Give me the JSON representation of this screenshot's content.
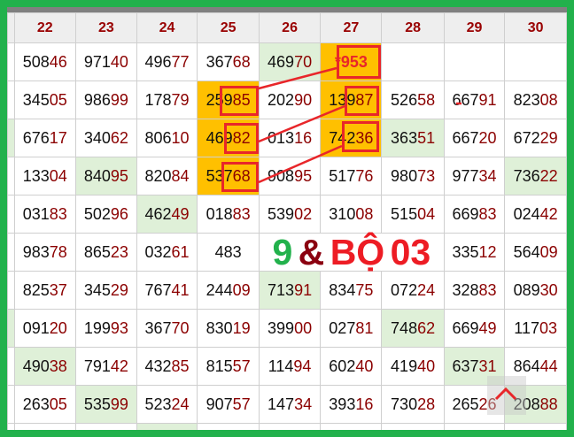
{
  "columns": [
    "22",
    "23",
    "24",
    "25",
    "26",
    "27",
    "28",
    "29",
    "30"
  ],
  "rows": [
    [
      [
        "50846",
        ""
      ],
      [
        "97140",
        ""
      ],
      [
        "49677",
        ""
      ],
      [
        "36768",
        ""
      ],
      [
        "46970",
        "g"
      ],
      [
        "*953",
        "o"
      ],
      [
        "",
        ""
      ],
      [
        "",
        ""
      ],
      [
        "",
        ""
      ]
    ],
    [
      [
        "34505",
        ""
      ],
      [
        "98699",
        ""
      ],
      [
        "17879",
        ""
      ],
      [
        "25985",
        "o"
      ],
      [
        "20290",
        ""
      ],
      [
        "13987",
        "o"
      ],
      [
        "52658",
        ""
      ],
      [
        "66791",
        ""
      ],
      [
        "82308",
        ""
      ]
    ],
    [
      [
        "67617",
        ""
      ],
      [
        "34062",
        ""
      ],
      [
        "80610",
        ""
      ],
      [
        "46982",
        "o"
      ],
      [
        "01316",
        ""
      ],
      [
        "74236",
        "o"
      ],
      [
        "36351",
        "g"
      ],
      [
        "66720",
        ""
      ],
      [
        "67229",
        ""
      ]
    ],
    [
      [
        "13304",
        ""
      ],
      [
        "84095",
        "g"
      ],
      [
        "82084",
        ""
      ],
      [
        "53768",
        "o"
      ],
      [
        "90895",
        ""
      ],
      [
        "51776",
        ""
      ],
      [
        "98073",
        ""
      ],
      [
        "97734",
        ""
      ],
      [
        "73622",
        "g"
      ]
    ],
    [
      [
        "03183",
        ""
      ],
      [
        "50296",
        ""
      ],
      [
        "46249",
        "g"
      ],
      [
        "01883",
        ""
      ],
      [
        "53902",
        ""
      ],
      [
        "31008",
        ""
      ],
      [
        "51504",
        ""
      ],
      [
        "66983",
        ""
      ],
      [
        "02442",
        ""
      ]
    ],
    [
      [
        "98378",
        ""
      ],
      [
        "86523",
        ""
      ],
      [
        "03261",
        ""
      ],
      [
        "483",
        ""
      ],
      [
        "",
        ""
      ],
      [
        "",
        ""
      ],
      [
        "",
        ""
      ],
      [
        "33512",
        ""
      ],
      [
        "56409",
        ""
      ]
    ],
    [
      [
        "82537",
        ""
      ],
      [
        "34529",
        ""
      ],
      [
        "76741",
        ""
      ],
      [
        "24409",
        ""
      ],
      [
        "71391",
        "g"
      ],
      [
        "83475",
        ""
      ],
      [
        "07224",
        ""
      ],
      [
        "32883",
        ""
      ],
      [
        "08930",
        ""
      ]
    ],
    [
      [
        "09120",
        ""
      ],
      [
        "19993",
        ""
      ],
      [
        "36770",
        ""
      ],
      [
        "83019",
        ""
      ],
      [
        "39900",
        ""
      ],
      [
        "02781",
        ""
      ],
      [
        "74862",
        "g"
      ],
      [
        "66949",
        ""
      ],
      [
        "11703",
        ""
      ]
    ],
    [
      [
        "49038",
        "g"
      ],
      [
        "79142",
        ""
      ],
      [
        "43285",
        ""
      ],
      [
        "81557",
        ""
      ],
      [
        "11494",
        ""
      ],
      [
        "60240",
        ""
      ],
      [
        "41940",
        ""
      ],
      [
        "63731",
        "g"
      ],
      [
        "86444",
        ""
      ]
    ],
    [
      [
        "26305",
        ""
      ],
      [
        "53599",
        "g"
      ],
      [
        "52324",
        ""
      ],
      [
        "90757",
        ""
      ],
      [
        "14734",
        ""
      ],
      [
        "39316",
        ""
      ],
      [
        "73028",
        ""
      ],
      [
        "26526",
        ""
      ],
      [
        "20888",
        "g"
      ]
    ],
    [
      [
        "",
        ""
      ],
      [
        "",
        ""
      ],
      [
        "",
        "g"
      ],
      [
        "",
        ""
      ],
      [
        "",
        ""
      ],
      [
        "",
        ""
      ],
      [
        "",
        ""
      ],
      [
        "",
        ""
      ],
      [
        "",
        ""
      ]
    ]
  ],
  "left_partial_green_rows": [
    2,
    7
  ],
  "overlay": {
    "part1": "9",
    "part2": "&",
    "part3": "BỘ 03"
  },
  "colors": {
    "green": "#22b14c",
    "highlight_green": "#dff0d8",
    "highlight_orange": "#ffc000",
    "red": "#e8262a",
    "dark_red": "#8b0000"
  },
  "icons": {
    "scroll_top": "chevron-up-icon"
  }
}
